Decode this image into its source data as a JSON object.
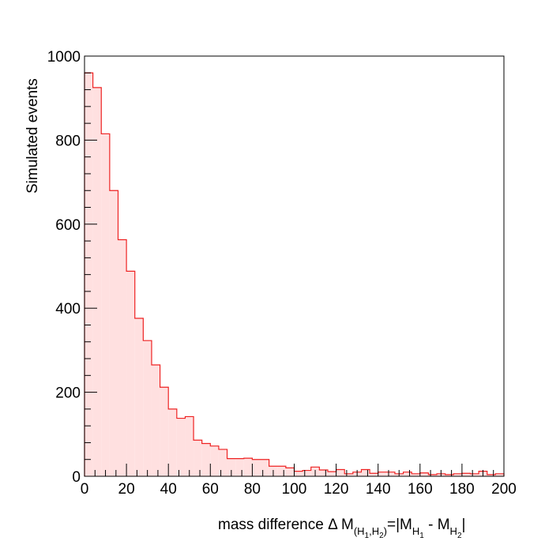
{
  "chart_data": {
    "type": "histogram",
    "title": "",
    "ylabel": "Simulated events",
    "xlabel": {
      "main": "mass difference ",
      "delta": "Δ",
      "M": " M",
      "sub_open": "(H",
      "sub_1": "1",
      "sub_comma": ",H",
      "sub_2": "2",
      "sub_close": ")",
      "eq": "=|M",
      "H1": "H",
      "H1sub": "1",
      "minus": " - M",
      "H2": "H",
      "H2sub": "2",
      "bar": "|"
    },
    "xlim": [
      0,
      200
    ],
    "ylim": [
      0,
      1000
    ],
    "x_ticks": [
      "0",
      "20",
      "40",
      "60",
      "80",
      "100",
      "120",
      "140",
      "160",
      "180",
      "200"
    ],
    "y_ticks": [
      "0",
      "200",
      "400",
      "600",
      "800",
      "1000"
    ],
    "bin_width": 4,
    "values": [
      960,
      925,
      815,
      680,
      563,
      488,
      376,
      323,
      265,
      212,
      160,
      138,
      142,
      86,
      78,
      72,
      64,
      42,
      42,
      43,
      40,
      40,
      24,
      24,
      20,
      12,
      14,
      22,
      15,
      11,
      16,
      6,
      10,
      16,
      7,
      10,
      10,
      6,
      10,
      6,
      8,
      4,
      6,
      4,
      6,
      7,
      6,
      12,
      4,
      6
    ],
    "fill_color": "#ffe0e0",
    "line_color": "#ee2222",
    "grid": false,
    "legend": "none"
  }
}
